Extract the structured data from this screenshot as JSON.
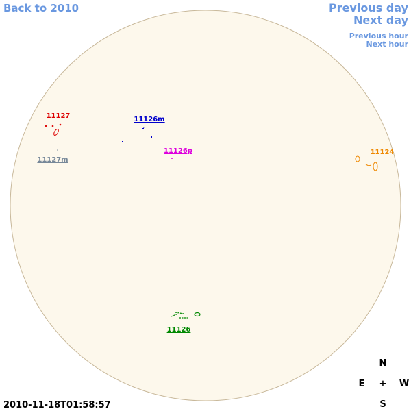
{
  "nav": {
    "back": "Back to 2010",
    "previous_day": "Previous day",
    "next_day": "Next day",
    "previous_hour": "Previous hour",
    "next_hour": "Next hour"
  },
  "regions": [
    {
      "label": "11127",
      "color": "#dd0000"
    },
    {
      "label": "11127m",
      "color": "#778899"
    },
    {
      "label": "11126m",
      "color": "#0000cc"
    },
    {
      "label": "11126p",
      "color": "#dd00dd"
    },
    {
      "label": "11124",
      "color": "#ee8800"
    },
    {
      "label": "11126",
      "color": "#008800"
    }
  ],
  "compass": {
    "north": "N",
    "east": "E",
    "center": "+",
    "west": "W",
    "south": "S"
  },
  "timestamp": "2010-11-18T01:58:57"
}
